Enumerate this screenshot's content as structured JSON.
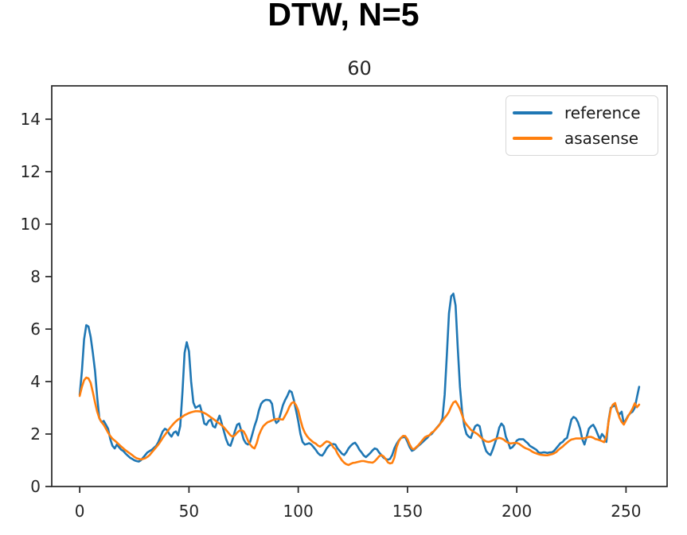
{
  "header": {
    "title": "DTW, N=5"
  },
  "chart_data": {
    "type": "line",
    "title": "DTW, N=5",
    "axes_title": "60",
    "xlabel": "",
    "ylabel": "",
    "xlim": [
      -12.8,
      268.8
    ],
    "ylim": [
      0,
      15.27
    ],
    "xticks": [
      0,
      50,
      100,
      150,
      200,
      250
    ],
    "yticks": [
      0,
      2,
      4,
      6,
      8,
      10,
      12,
      14
    ],
    "grid": false,
    "legend_position": "upper right",
    "axis_color": "#262626",
    "series": [
      {
        "name": "reference",
        "color": "#1f77b4",
        "x_start": 0,
        "x_step": 1,
        "values": [
          3.5,
          4.4,
          5.6,
          6.15,
          6.1,
          5.7,
          5.1,
          4.4,
          3.4,
          2.6,
          2.45,
          2.5,
          2.35,
          2.2,
          1.8,
          1.55,
          1.45,
          1.6,
          1.5,
          1.4,
          1.35,
          1.25,
          1.18,
          1.1,
          1.05,
          1.0,
          0.97,
          0.95,
          1.0,
          1.1,
          1.2,
          1.3,
          1.35,
          1.4,
          1.48,
          1.55,
          1.7,
          1.9,
          2.1,
          2.2,
          2.15,
          2.0,
          1.9,
          2.05,
          2.1,
          1.95,
          2.3,
          3.6,
          5.1,
          5.5,
          5.15,
          4.0,
          3.2,
          3.0,
          3.05,
          3.1,
          2.8,
          2.4,
          2.35,
          2.5,
          2.55,
          2.3,
          2.25,
          2.5,
          2.7,
          2.4,
          2.1,
          1.8,
          1.6,
          1.55,
          1.8,
          2.1,
          2.35,
          2.4,
          2.1,
          1.8,
          1.65,
          1.6,
          1.7,
          2.0,
          2.3,
          2.55,
          2.9,
          3.15,
          3.25,
          3.3,
          3.3,
          3.28,
          3.15,
          2.6,
          2.42,
          2.5,
          2.8,
          3.1,
          3.3,
          3.45,
          3.65,
          3.6,
          3.3,
          2.9,
          2.5,
          2.0,
          1.7,
          1.6,
          1.62,
          1.65,
          1.6,
          1.5,
          1.4,
          1.28,
          1.2,
          1.18,
          1.3,
          1.45,
          1.55,
          1.6,
          1.62,
          1.6,
          1.45,
          1.35,
          1.25,
          1.2,
          1.3,
          1.45,
          1.55,
          1.63,
          1.67,
          1.55,
          1.4,
          1.3,
          1.18,
          1.12,
          1.2,
          1.28,
          1.38,
          1.45,
          1.42,
          1.3,
          1.2,
          1.1,
          1.05,
          1.02,
          1.05,
          1.2,
          1.45,
          1.62,
          1.75,
          1.85,
          1.88,
          1.88,
          1.7,
          1.5,
          1.36,
          1.4,
          1.48,
          1.55,
          1.62,
          1.7,
          1.78,
          1.85,
          1.95,
          2.0,
          2.1,
          2.2,
          2.3,
          2.4,
          2.6,
          3.5,
          5.0,
          6.6,
          7.25,
          7.35,
          6.9,
          5.3,
          3.8,
          2.85,
          2.3,
          2.0,
          1.9,
          1.85,
          2.1,
          2.3,
          2.35,
          2.3,
          1.9,
          1.6,
          1.35,
          1.25,
          1.2,
          1.4,
          1.65,
          1.9,
          2.25,
          2.4,
          2.3,
          1.9,
          1.7,
          1.45,
          1.5,
          1.6,
          1.75,
          1.8,
          1.8,
          1.8,
          1.72,
          1.65,
          1.55,
          1.5,
          1.45,
          1.4,
          1.3,
          1.28,
          1.3,
          1.3,
          1.28,
          1.3,
          1.3,
          1.35,
          1.45,
          1.55,
          1.65,
          1.7,
          1.8,
          1.85,
          2.2,
          2.55,
          2.65,
          2.6,
          2.45,
          2.2,
          1.8,
          1.6,
          1.9,
          2.2,
          2.3,
          2.35,
          2.2,
          2.0,
          1.8,
          2.0,
          1.9,
          1.7,
          2.5,
          3.0,
          3.05,
          3.1,
          2.85,
          2.75,
          2.85,
          2.4,
          2.55,
          2.7,
          2.8,
          2.85,
          3.0,
          3.4,
          3.8
        ]
      },
      {
        "name": "asasense",
        "color": "#ff7f0e",
        "x_start": 0,
        "x_step": 1,
        "values": [
          3.45,
          3.8,
          4.05,
          4.15,
          4.12,
          3.95,
          3.6,
          3.2,
          2.85,
          2.6,
          2.45,
          2.35,
          2.2,
          2.05,
          1.92,
          1.82,
          1.75,
          1.68,
          1.6,
          1.52,
          1.45,
          1.38,
          1.32,
          1.26,
          1.2,
          1.13,
          1.08,
          1.05,
          1.03,
          1.05,
          1.08,
          1.13,
          1.2,
          1.3,
          1.4,
          1.5,
          1.6,
          1.72,
          1.85,
          1.97,
          2.08,
          2.2,
          2.3,
          2.4,
          2.48,
          2.55,
          2.6,
          2.66,
          2.72,
          2.76,
          2.8,
          2.83,
          2.85,
          2.87,
          2.87,
          2.86,
          2.84,
          2.8,
          2.76,
          2.7,
          2.64,
          2.58,
          2.52,
          2.45,
          2.4,
          2.33,
          2.25,
          2.15,
          2.05,
          1.95,
          1.9,
          1.95,
          2.05,
          2.12,
          2.15,
          2.1,
          1.95,
          1.75,
          1.6,
          1.5,
          1.45,
          1.65,
          1.95,
          2.15,
          2.3,
          2.38,
          2.45,
          2.48,
          2.52,
          2.55,
          2.57,
          2.58,
          2.56,
          2.55,
          2.7,
          2.85,
          3.05,
          3.18,
          3.22,
          3.1,
          2.9,
          2.55,
          2.25,
          2.05,
          1.92,
          1.82,
          1.75,
          1.68,
          1.64,
          1.56,
          1.52,
          1.58,
          1.66,
          1.72,
          1.7,
          1.64,
          1.5,
          1.42,
          1.25,
          1.12,
          1.0,
          0.91,
          0.85,
          0.82,
          0.86,
          0.9,
          0.91,
          0.93,
          0.95,
          0.97,
          0.97,
          0.95,
          0.93,
          0.92,
          0.91,
          0.96,
          1.05,
          1.15,
          1.2,
          1.15,
          1.05,
          0.92,
          0.88,
          0.9,
          1.1,
          1.5,
          1.72,
          1.85,
          1.93,
          1.92,
          1.8,
          1.6,
          1.45,
          1.42,
          1.5,
          1.58,
          1.68,
          1.78,
          1.88,
          1.92,
          1.95,
          2.05,
          2.1,
          2.2,
          2.28,
          2.4,
          2.5,
          2.62,
          2.72,
          2.85,
          3.05,
          3.2,
          3.25,
          3.12,
          2.95,
          2.72,
          2.48,
          2.36,
          2.26,
          2.16,
          2.1,
          2.05,
          2.0,
          1.92,
          1.84,
          1.77,
          1.72,
          1.7,
          1.72,
          1.76,
          1.8,
          1.83,
          1.85,
          1.83,
          1.79,
          1.72,
          1.67,
          1.64,
          1.65,
          1.66,
          1.66,
          1.63,
          1.57,
          1.51,
          1.46,
          1.43,
          1.39,
          1.33,
          1.29,
          1.26,
          1.23,
          1.21,
          1.2,
          1.19,
          1.19,
          1.21,
          1.23,
          1.26,
          1.31,
          1.39,
          1.46,
          1.52,
          1.6,
          1.67,
          1.74,
          1.79,
          1.81,
          1.83,
          1.83,
          1.83,
          1.83,
          1.84,
          1.87,
          1.89,
          1.89,
          1.86,
          1.81,
          1.79,
          1.76,
          1.73,
          1.69,
          1.9,
          2.45,
          2.95,
          3.12,
          3.18,
          2.88,
          2.62,
          2.46,
          2.36,
          2.52,
          2.68,
          2.82,
          2.97,
          3.17,
          3.02,
          3.12
        ]
      }
    ]
  }
}
